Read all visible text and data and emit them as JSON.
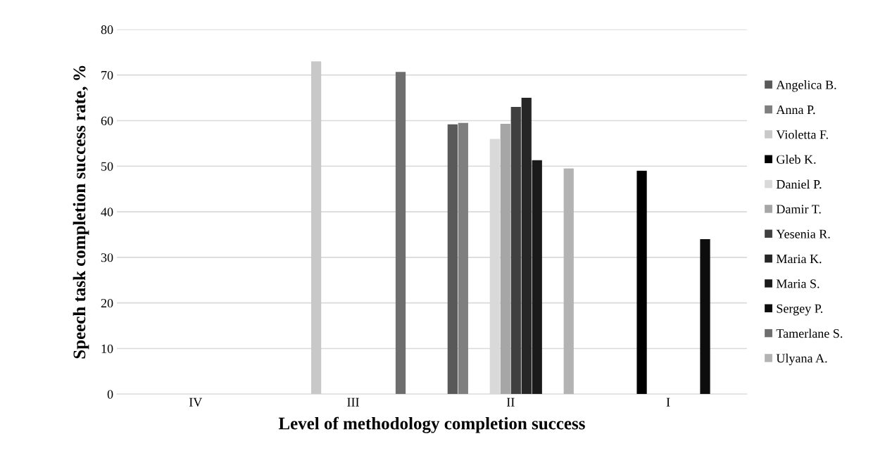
{
  "chart_data": {
    "type": "bar",
    "xlabel": "Level of methodology completion success",
    "ylabel": "Speech task completion success rate, %",
    "categories": [
      "IV",
      "III",
      "II",
      "I"
    ],
    "series": [
      {
        "name": "Angelica B.",
        "color": "#595959",
        "values": [
          null,
          null,
          59.2,
          null
        ]
      },
      {
        "name": "Anna P.",
        "color": "#7f7f7f",
        "values": [
          null,
          null,
          59.5,
          null
        ]
      },
      {
        "name": "Violetta F.",
        "color": "#c8c8c8",
        "values": [
          null,
          73,
          null,
          null
        ]
      },
      {
        "name": "Gleb K.",
        "color": "#000000",
        "values": [
          null,
          null,
          null,
          49
        ]
      },
      {
        "name": "Daniel P.",
        "color": "#d9d9d9",
        "values": [
          null,
          null,
          56,
          null
        ]
      },
      {
        "name": "Damir T.",
        "color": "#a6a6a6",
        "values": [
          null,
          null,
          59.3,
          null
        ]
      },
      {
        "name": "Yesenia R.",
        "color": "#404040",
        "values": [
          null,
          null,
          63,
          null
        ]
      },
      {
        "name": "Maria K.",
        "color": "#262626",
        "values": [
          null,
          null,
          65,
          null
        ]
      },
      {
        "name": "Maria S.",
        "color": "#1a1a1a",
        "values": [
          null,
          null,
          51.3,
          null
        ]
      },
      {
        "name": "Sergey P.",
        "color": "#0d0d0d",
        "values": [
          null,
          null,
          null,
          34
        ]
      },
      {
        "name": "Tamerlane S.",
        "color": "#6e6e6e",
        "values": [
          null,
          70.7,
          null,
          null
        ]
      },
      {
        "name": "Ulyana A.",
        "color": "#b3b3b3",
        "values": [
          null,
          null,
          49.5,
          null
        ]
      }
    ],
    "ylim": [
      0,
      80
    ],
    "yticks": [
      0,
      10,
      20,
      30,
      40,
      50,
      60,
      70,
      80
    ],
    "grid": "y",
    "legend": "right"
  }
}
